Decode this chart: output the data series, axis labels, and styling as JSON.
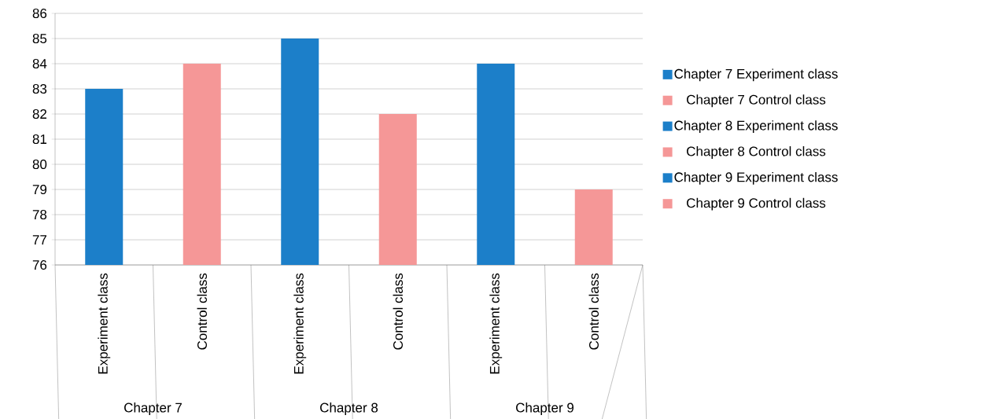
{
  "chart_data": {
    "type": "bar",
    "categories": [
      "Experiment class",
      "Control class",
      "Experiment class",
      "Control class",
      "Experiment class",
      "Control class"
    ],
    "series": [
      {
        "name": "Chapter 7 Experiment class",
        "color": "#1c7fc9",
        "values": [
          83,
          null,
          null,
          null,
          null,
          null
        ]
      },
      {
        "name": "Chapter 7 Control class",
        "color": "#f59797",
        "values": [
          null,
          84,
          null,
          null,
          null,
          null
        ]
      },
      {
        "name": "Chapter 8 Experiment class",
        "color": "#1c7fc9",
        "values": [
          null,
          null,
          85,
          null,
          null,
          null
        ]
      },
      {
        "name": "Chapter 8 Control class",
        "color": "#f59797",
        "values": [
          null,
          null,
          null,
          82,
          null,
          null
        ]
      },
      {
        "name": "Chapter 9 Experiment class",
        "color": "#1c7fc9",
        "values": [
          null,
          null,
          null,
          null,
          84,
          null
        ]
      },
      {
        "name": "Chapter 9 Control class",
        "color": "#f59797",
        "values": [
          null,
          null,
          null,
          null,
          null,
          79
        ]
      }
    ],
    "annotations": [
      "Chapter 7",
      "Chapter 8",
      "Chapter 9"
    ],
    "ylim": [
      76,
      86
    ],
    "yticks": [
      76,
      77,
      78,
      79,
      80,
      81,
      82,
      83,
      84,
      85,
      86
    ],
    "grid": "y",
    "legend": "right"
  }
}
